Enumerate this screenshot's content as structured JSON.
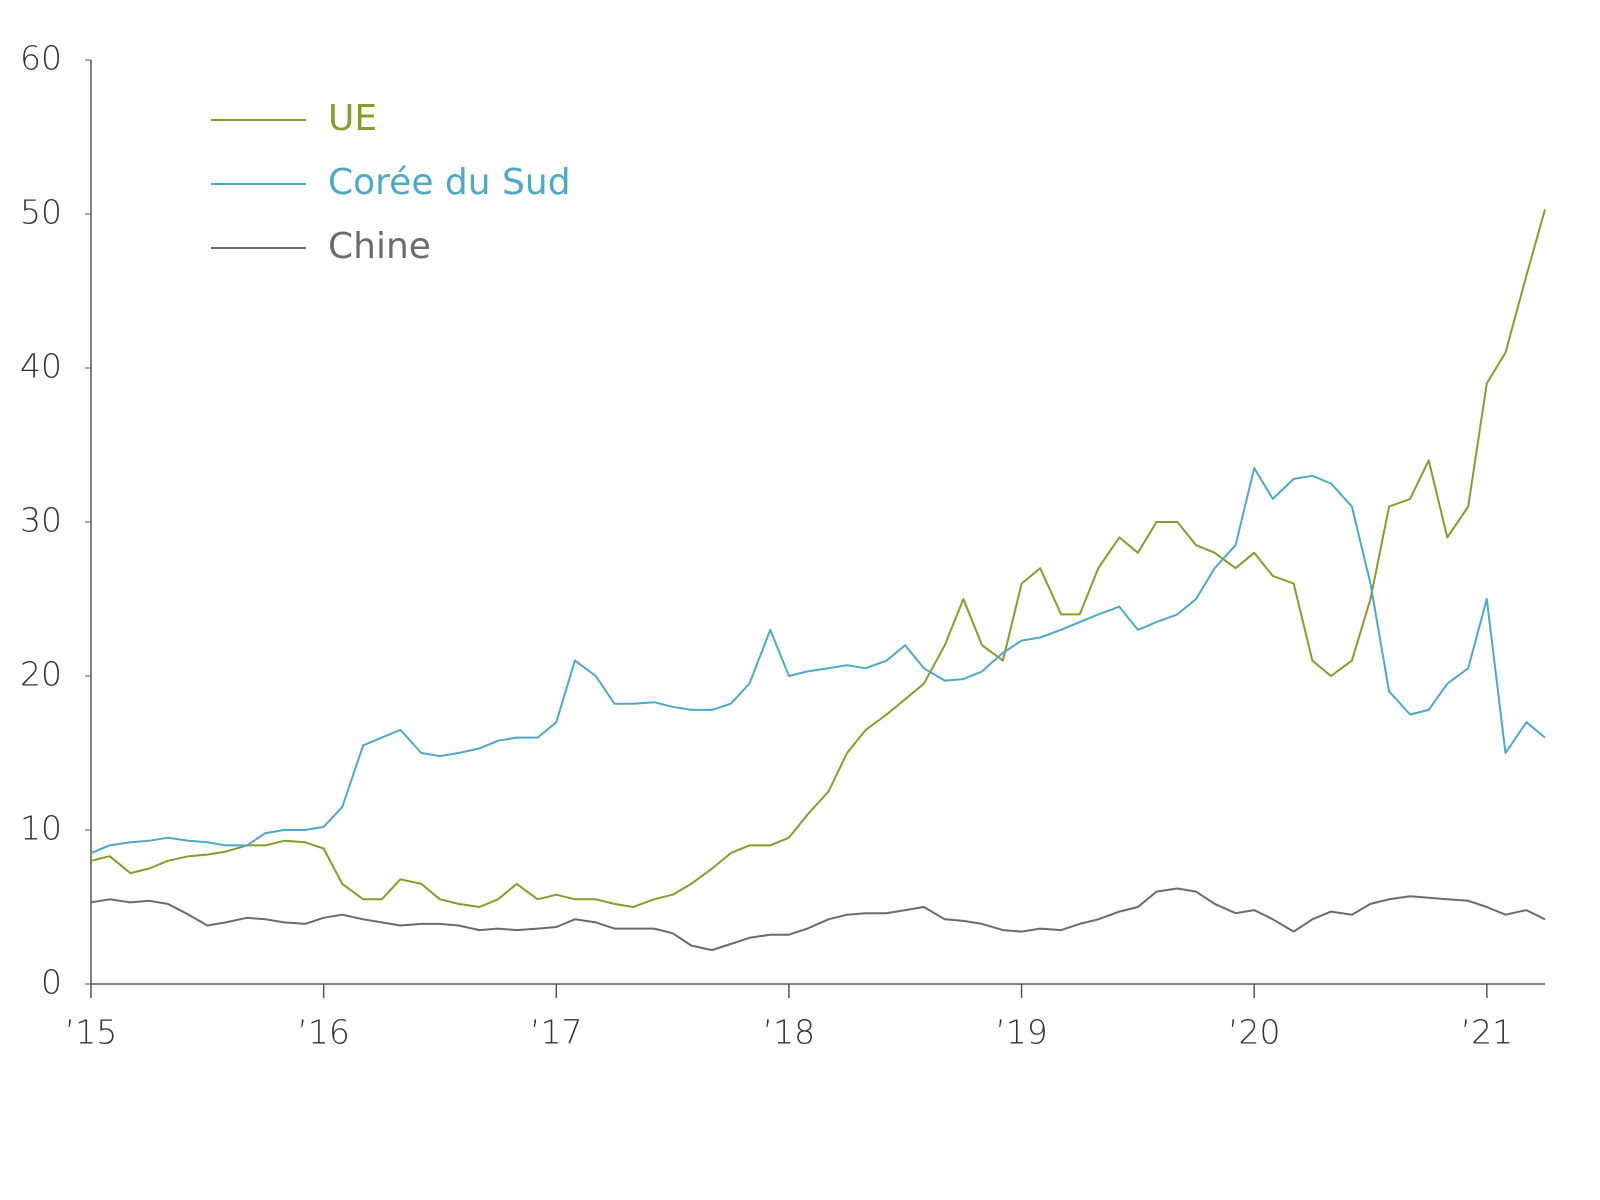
{
  "chart_data": {
    "type": "line",
    "x": [
      2015,
      2015.08,
      2015.17,
      2015.25,
      2015.33,
      2015.42,
      2015.5,
      2015.58,
      2015.67,
      2015.75,
      2015.83,
      2015.92,
      2016,
      2016.08,
      2016.17,
      2016.25,
      2016.33,
      2016.42,
      2016.5,
      2016.58,
      2016.67,
      2016.75,
      2016.83,
      2016.92,
      2017,
      2017.08,
      2017.17,
      2017.25,
      2017.33,
      2017.42,
      2017.5,
      2017.58,
      2017.67,
      2017.75,
      2017.83,
      2017.92,
      2018,
      2018.08,
      2018.17,
      2018.25,
      2018.33,
      2018.42,
      2018.5,
      2018.58,
      2018.67,
      2018.75,
      2018.83,
      2018.92,
      2019,
      2019.08,
      2019.17,
      2019.25,
      2019.33,
      2019.42,
      2019.5,
      2019.58,
      2019.67,
      2019.75,
      2019.83,
      2019.92,
      2020,
      2020.08,
      2020.17,
      2020.25,
      2020.33,
      2020.42,
      2020.5,
      2020.58,
      2020.67,
      2020.75,
      2020.83,
      2020.92,
      2021,
      2021.08,
      2021.17,
      2021.25
    ],
    "series": [
      {
        "name": "UE",
        "color": "#8a9a2e",
        "values": [
          8,
          8.3,
          7.2,
          7.5,
          8,
          8.3,
          8.4,
          8.6,
          9,
          9,
          9.3,
          9.2,
          8.8,
          6.5,
          5.5,
          5.5,
          6.8,
          6.5,
          5.5,
          5.2,
          5,
          5.5,
          6.5,
          5.5,
          5.8,
          5.5,
          5.5,
          5.2,
          5,
          5.5,
          5.8,
          6.5,
          7.5,
          8.5,
          9,
          9,
          9.5,
          11,
          12.5,
          15,
          16.5,
          17.5,
          18.5,
          19.5,
          22,
          25,
          22,
          21,
          26,
          27,
          24,
          24,
          27,
          29,
          28,
          30,
          30,
          28.5,
          28,
          27,
          28,
          26.5,
          26,
          21,
          20,
          21,
          25,
          31,
          31.5,
          34,
          29,
          31,
          39,
          41,
          46,
          50.3
        ]
      },
      {
        "name": "Corée du Sud",
        "color": "#4fa8c5",
        "values": [
          8.5,
          9,
          9.2,
          9.3,
          9.5,
          9.3,
          9.2,
          9,
          9,
          9.8,
          10,
          10,
          10.2,
          11.5,
          15.5,
          16,
          16.5,
          15,
          14.8,
          15,
          15.3,
          15.8,
          16,
          16,
          17,
          21,
          20,
          18.2,
          18.2,
          18.3,
          18,
          17.8,
          17.8,
          18.2,
          19.5,
          23,
          20,
          20.3,
          20.5,
          20.7,
          20.5,
          21,
          22,
          20.5,
          19.7,
          19.8,
          20.3,
          21.5,
          22.3,
          22.5,
          23,
          23.5,
          24,
          24.5,
          23,
          23.5,
          24,
          25,
          27,
          28.5,
          33.5,
          31.5,
          32.8,
          33,
          32.5,
          31,
          26,
          19,
          17.5,
          17.8,
          19.5,
          20.5,
          25,
          15,
          17,
          16
        ]
      },
      {
        "name": "Chine",
        "color": "#6b6b6b",
        "values": [
          5.3,
          5.5,
          5.3,
          5.4,
          5.2,
          4.5,
          3.8,
          4,
          4.3,
          4.2,
          4,
          3.9,
          4.3,
          4.5,
          4.2,
          4,
          3.8,
          3.9,
          3.9,
          3.8,
          3.5,
          3.6,
          3.5,
          3.6,
          3.7,
          4.2,
          4,
          3.6,
          3.6,
          3.6,
          3.3,
          2.5,
          2.2,
          2.6,
          3,
          3.2,
          3.2,
          3.6,
          4.2,
          4.5,
          4.6,
          4.6,
          4.8,
          5,
          4.2,
          4.1,
          3.9,
          3.5,
          3.4,
          3.6,
          3.5,
          3.9,
          4.2,
          4.7,
          5,
          6,
          6.2,
          6,
          5.2,
          4.6,
          4.8,
          4.2,
          3.4,
          4.2,
          4.7,
          4.5,
          5.2,
          5.5,
          5.7,
          5.6,
          5.5,
          5.4,
          5,
          4.5,
          4.8,
          4.2
        ]
      }
    ],
    "xlim": [
      2015,
      2021.25
    ],
    "xticks": [
      {
        "value": 2015,
        "label": "’15"
      },
      {
        "value": 2016,
        "label": "’16"
      },
      {
        "value": 2017,
        "label": "’17"
      },
      {
        "value": 2018,
        "label": "’18"
      },
      {
        "value": 2019,
        "label": "’19"
      },
      {
        "value": 2020,
        "label": "’20"
      },
      {
        "value": 2021,
        "label": "’21"
      }
    ],
    "ylim": [
      0,
      60
    ],
    "yticks": [
      0,
      10,
      20,
      30,
      40,
      50,
      60
    ],
    "grid": false,
    "legend": "upper-left"
  }
}
